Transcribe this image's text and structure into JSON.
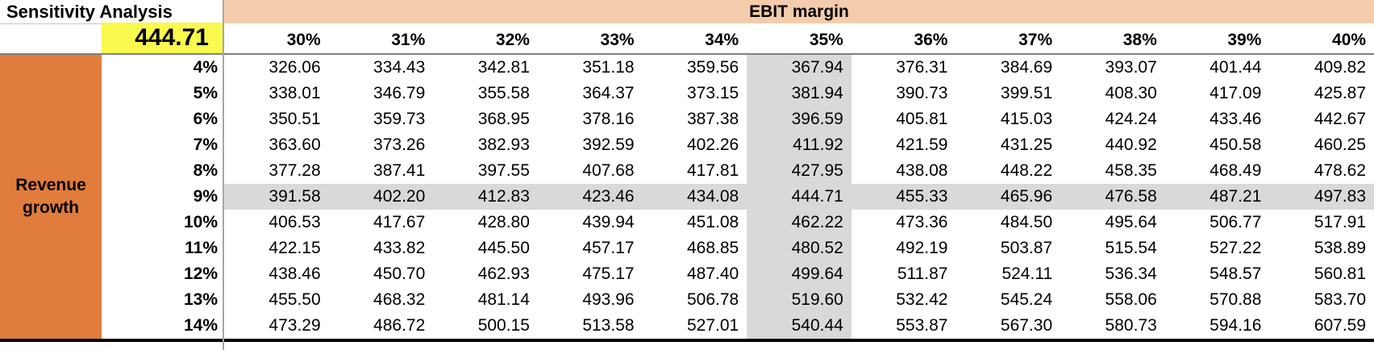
{
  "title": "Sensitivity Analysis",
  "selected_value": "444.71",
  "column_group_label": "EBIT margin",
  "row_group_label": "Revenue growth",
  "colors": {
    "orange_header": "#E07C3C",
    "peach_band": "#F5CCAB",
    "yellow_highlight": "#F9F94E",
    "gray_highlight": "#D9D9D9",
    "divider_gray": "#808080"
  },
  "chart_data": {
    "type": "table",
    "title": "Sensitivity Analysis",
    "x_axis_label": "EBIT margin",
    "y_axis_label": "Revenue growth",
    "columns": [
      "30%",
      "31%",
      "32%",
      "33%",
      "34%",
      "35%",
      "36%",
      "37%",
      "38%",
      "39%",
      "40%"
    ],
    "rows": [
      {
        "label": "4%",
        "values": [
          "326.06",
          "334.43",
          "342.81",
          "351.18",
          "359.56",
          "367.94",
          "376.31",
          "384.69",
          "393.07",
          "401.44",
          "409.82"
        ]
      },
      {
        "label": "5%",
        "values": [
          "338.01",
          "346.79",
          "355.58",
          "364.37",
          "373.15",
          "381.94",
          "390.73",
          "399.51",
          "408.30",
          "417.09",
          "425.87"
        ]
      },
      {
        "label": "6%",
        "values": [
          "350.51",
          "359.73",
          "368.95",
          "378.16",
          "387.38",
          "396.59",
          "405.81",
          "415.03",
          "424.24",
          "433.46",
          "442.67"
        ]
      },
      {
        "label": "7%",
        "values": [
          "363.60",
          "373.26",
          "382.93",
          "392.59",
          "402.26",
          "411.92",
          "421.59",
          "431.25",
          "440.92",
          "450.58",
          "460.25"
        ]
      },
      {
        "label": "8%",
        "values": [
          "377.28",
          "387.41",
          "397.55",
          "407.68",
          "417.81",
          "427.95",
          "438.08",
          "448.22",
          "458.35",
          "468.49",
          "478.62"
        ]
      },
      {
        "label": "9%",
        "values": [
          "391.58",
          "402.20",
          "412.83",
          "423.46",
          "434.08",
          "444.71",
          "455.33",
          "465.96",
          "476.58",
          "487.21",
          "497.83"
        ]
      },
      {
        "label": "10%",
        "values": [
          "406.53",
          "417.67",
          "428.80",
          "439.94",
          "451.08",
          "462.22",
          "473.36",
          "484.50",
          "495.64",
          "506.77",
          "517.91"
        ]
      },
      {
        "label": "11%",
        "values": [
          "422.15",
          "433.82",
          "445.50",
          "457.17",
          "468.85",
          "480.52",
          "492.19",
          "503.87",
          "515.54",
          "527.22",
          "538.89"
        ]
      },
      {
        "label": "12%",
        "values": [
          "438.46",
          "450.70",
          "462.93",
          "475.17",
          "487.40",
          "499.64",
          "511.87",
          "524.11",
          "536.34",
          "548.57",
          "560.81"
        ]
      },
      {
        "label": "13%",
        "values": [
          "455.50",
          "468.32",
          "481.14",
          "493.96",
          "506.78",
          "519.60",
          "532.42",
          "545.24",
          "558.06",
          "570.88",
          "583.70"
        ]
      },
      {
        "label": "14%",
        "values": [
          "473.29",
          "486.72",
          "500.15",
          "513.58",
          "527.01",
          "540.44",
          "553.87",
          "567.30",
          "580.73",
          "594.16",
          "607.59"
        ]
      }
    ],
    "highlight": {
      "row_label": "9%",
      "column_label": "35%",
      "value": "444.71"
    }
  }
}
